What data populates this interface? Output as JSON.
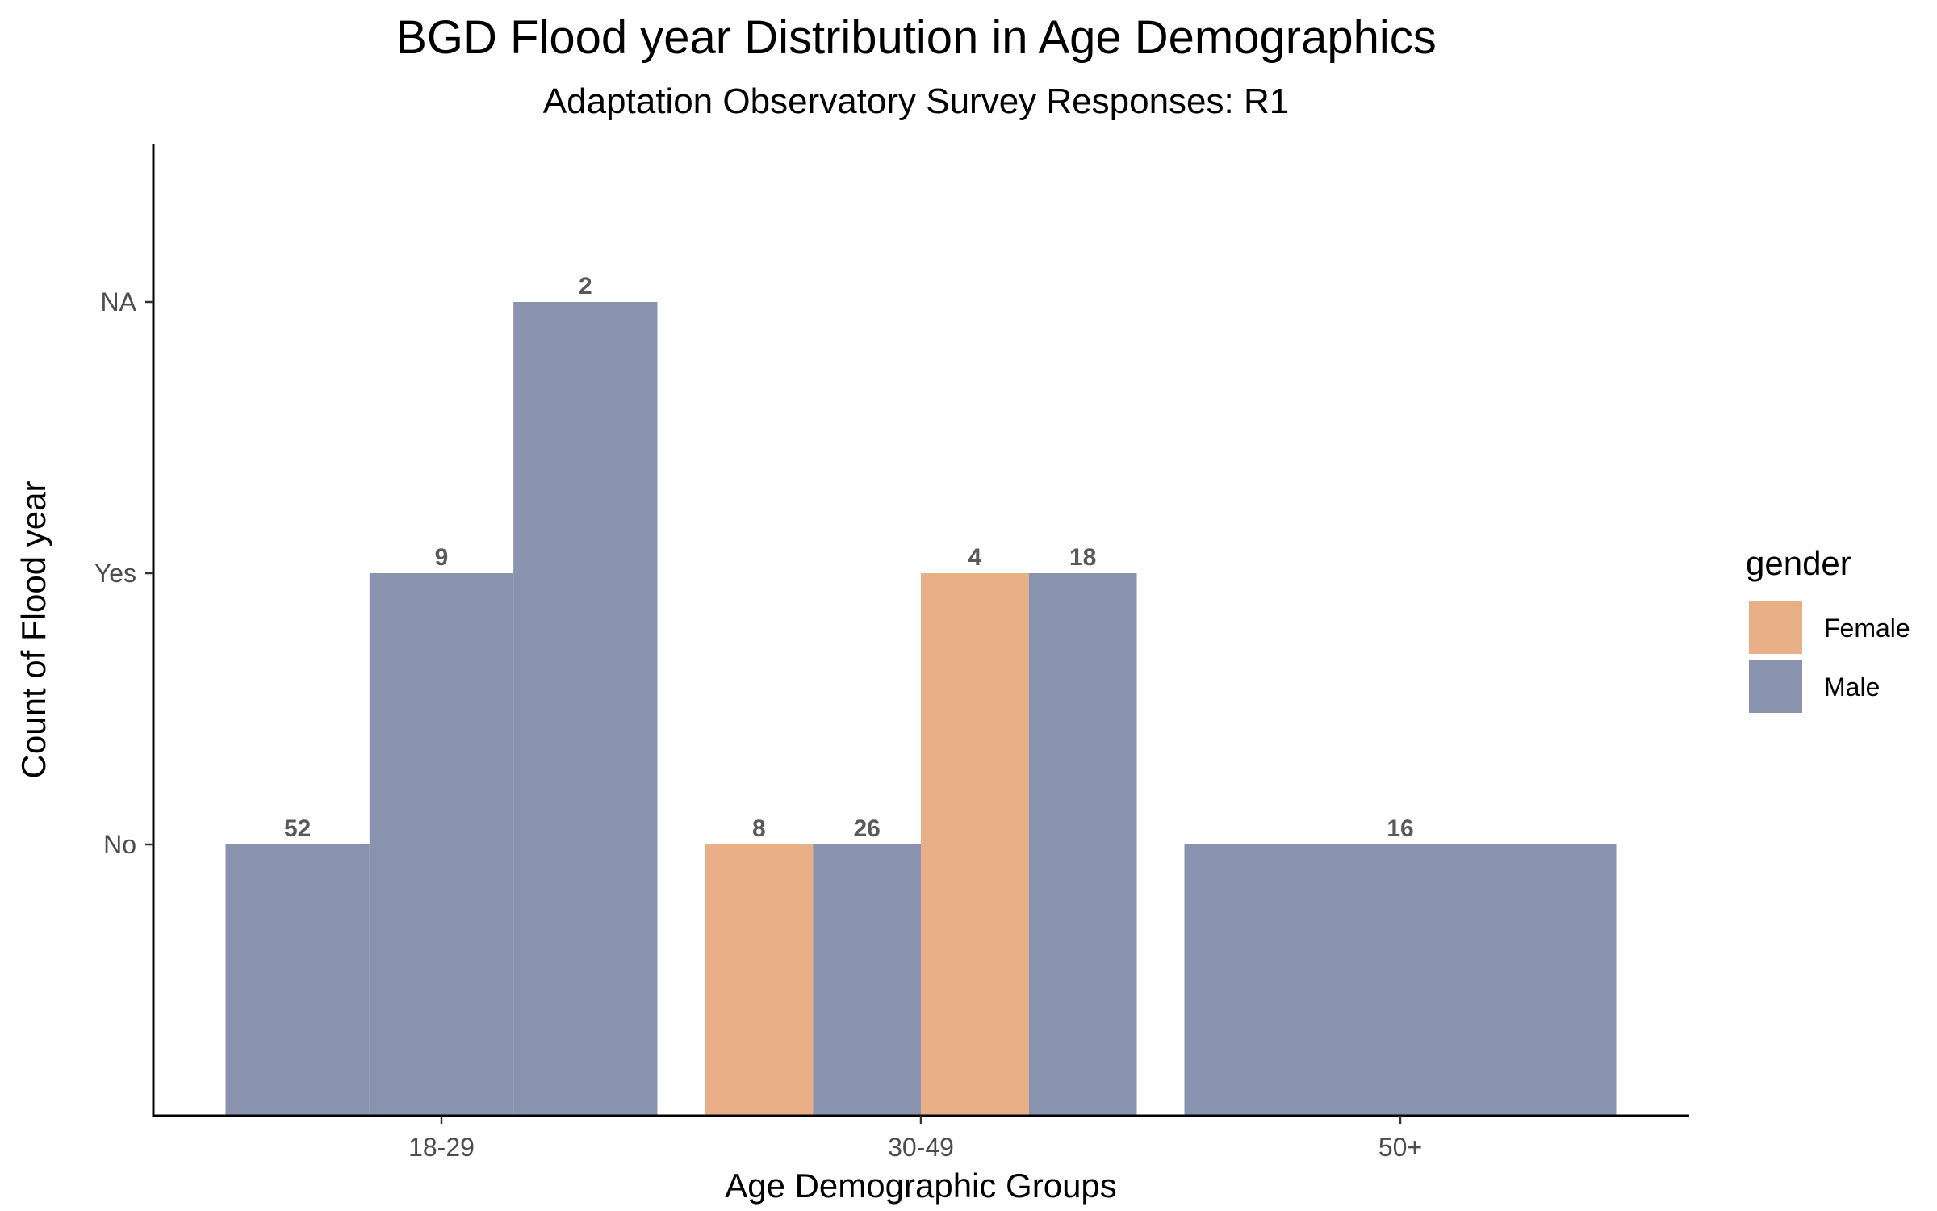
{
  "chart_data": {
    "type": "bar",
    "title": "BGD Flood year Distribution in Age Demographics",
    "subtitle": "Adaptation Observatory Survey Responses: R1",
    "xlabel": "Age Demographic Groups",
    "ylabel": "Count of Flood year",
    "categories": [
      "18-29",
      "30-49",
      "50+"
    ],
    "y_levels": [
      "No",
      "Yes",
      "NA"
    ],
    "grid": false,
    "legend": {
      "title": "gender",
      "placement": "right",
      "entries": [
        {
          "name": "Female",
          "color": "#E9AF87"
        },
        {
          "name": "Male",
          "color": "#8A93AD"
        }
      ]
    },
    "bars": [
      {
        "category": "18-29",
        "gender": "Male",
        "response": "No",
        "count": 52
      },
      {
        "category": "18-29",
        "gender": "Male",
        "response": "Yes",
        "count": 9
      },
      {
        "category": "18-29",
        "gender": "Male",
        "response": "NA",
        "count": 2
      },
      {
        "category": "30-49",
        "gender": "Female",
        "response": "No",
        "count": 8
      },
      {
        "category": "30-49",
        "gender": "Male",
        "response": "No",
        "count": 26
      },
      {
        "category": "30-49",
        "gender": "Female",
        "response": "Yes",
        "count": 4
      },
      {
        "category": "30-49",
        "gender": "Male",
        "response": "Yes",
        "count": 18
      },
      {
        "category": "50+",
        "gender": "Male",
        "response": "No",
        "count": 16
      }
    ]
  }
}
